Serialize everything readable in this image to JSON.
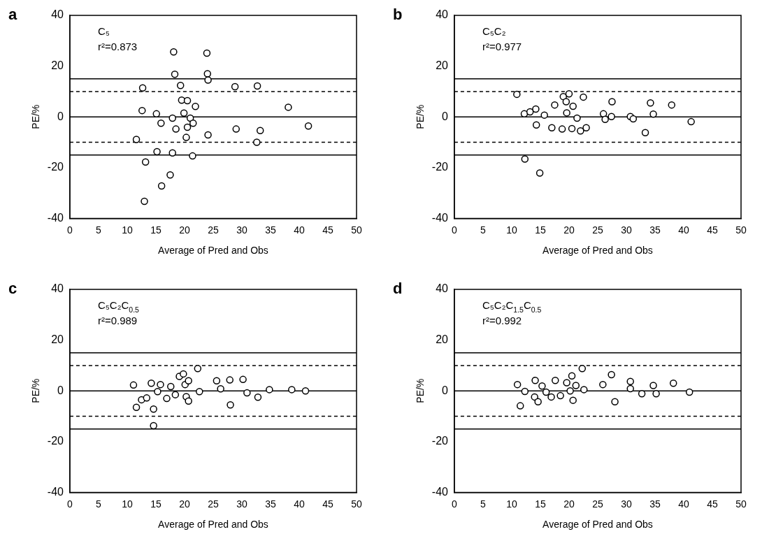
{
  "chart_data": [
    {
      "type": "scatter",
      "title": "a",
      "xlabel": "Average of Pred and Obs",
      "ylabel": "PE/%",
      "annotations": [
        "C₅",
        "r²=0.873"
      ],
      "x": [
        18.1,
        23.9,
        18.3,
        24.0,
        24.1,
        12.7,
        19.3,
        28.8,
        32.7,
        38.1,
        41.6,
        12.6,
        15.1,
        15.9,
        17.9,
        19.5,
        20.5,
        21.9,
        19.9,
        21.0,
        21.5,
        20.5,
        18.5,
        20.3,
        24.1,
        29.0,
        33.2,
        32.6,
        11.6,
        15.2,
        17.9,
        21.4,
        13.2,
        17.5,
        16.0,
        13.0
      ],
      "values": [
        25.6,
        25.1,
        16.8,
        17.0,
        14.5,
        11.4,
        12.4,
        11.9,
        12.2,
        3.8,
        -3.6,
        2.5,
        1.2,
        -2.5,
        -0.5,
        6.6,
        6.4,
        4.1,
        1.5,
        -0.5,
        -2.5,
        -4.1,
        -4.8,
        -8.1,
        -7.1,
        -4.8,
        -5.4,
        -10.0,
        -8.9,
        -13.7,
        -14.2,
        -15.4,
        -17.8,
        -22.9,
        -27.2,
        -33.3
      ],
      "color": "#ffffff",
      "marker": "circle",
      "grid": false,
      "xlim": [
        0,
        50
      ],
      "xticks": [
        0,
        5,
        10,
        15,
        20,
        25,
        30,
        35,
        40,
        45,
        50
      ],
      "ylim": [
        -40,
        40
      ],
      "yticks": [
        -40,
        -20,
        0,
        20,
        40
      ],
      "ref_lines": [
        {
          "axis": "y",
          "value": 15,
          "line_style": "solid"
        },
        {
          "axis": "y",
          "value": 10,
          "line_style": "dashed"
        },
        {
          "axis": "y",
          "value": 0,
          "line_style": "solid"
        },
        {
          "axis": "y",
          "value": -10,
          "line_style": "dashed"
        },
        {
          "axis": "y",
          "value": -15,
          "line_style": "solid"
        }
      ]
    },
    {
      "type": "scatter",
      "title": "b",
      "xlabel": "Average of Pred and Obs",
      "ylabel": "PE/%",
      "annotations": [
        "C₅C₂",
        "r²=0.977"
      ],
      "x": [
        10.9,
        12.2,
        12.3,
        14.9,
        14.2,
        13.2,
        15.7,
        14.3,
        17.5,
        17.0,
        18.8,
        19.0,
        20.0,
        19.5,
        19.6,
        20.7,
        21.4,
        20.5,
        22.0,
        23.0,
        22.5,
        26.0,
        26.3,
        27.4,
        27.5,
        30.7,
        31.2,
        33.3,
        34.2,
        34.7,
        37.9,
        41.3
      ],
      "values": [
        8.9,
        1.2,
        -16.6,
        -22.1,
        3.1,
        2.0,
        0.7,
        -3.2,
        4.7,
        -4.3,
        -4.8,
        8.0,
        9.1,
        6.0,
        1.6,
        4.2,
        -0.5,
        -4.6,
        -5.5,
        -4.3,
        7.8,
        1.2,
        -1.0,
        0.1,
        6.0,
        0.1,
        -0.8,
        -6.2,
        5.5,
        1.1,
        4.7,
        -1.9
      ],
      "color": "#ffffff",
      "marker": "circle",
      "grid": false,
      "xlim": [
        0,
        50
      ],
      "xticks": [
        0,
        5,
        10,
        15,
        20,
        25,
        30,
        35,
        40,
        45,
        50
      ],
      "ylim": [
        -40,
        40
      ],
      "yticks": [
        -40,
        -20,
        0,
        20,
        40
      ],
      "ref_lines": [
        {
          "axis": "y",
          "value": 15,
          "line_style": "solid"
        },
        {
          "axis": "y",
          "value": 10,
          "line_style": "dashed"
        },
        {
          "axis": "y",
          "value": 0,
          "line_style": "solid"
        },
        {
          "axis": "y",
          "value": -10,
          "line_style": "dashed"
        },
        {
          "axis": "y",
          "value": -15,
          "line_style": "solid"
        }
      ]
    },
    {
      "type": "scatter",
      "title": "c",
      "xlabel": "Average of Pred and Obs",
      "ylabel": "PE/%",
      "annotations": [
        "C₅C₂C$_{0.5}$",
        "r²=0.989"
      ],
      "x": [
        11.1,
        11.6,
        12.5,
        13.4,
        14.2,
        14.6,
        14.6,
        15.3,
        15.8,
        16.9,
        17.6,
        18.4,
        19.1,
        19.8,
        20.1,
        20.7,
        20.3,
        20.7,
        22.3,
        22.6,
        25.6,
        26.3,
        27.9,
        28.0,
        30.2,
        30.9,
        32.8,
        34.8,
        38.7,
        41.1
      ],
      "values": [
        2.3,
        -6.5,
        -3.5,
        -2.8,
        3.0,
        -7.2,
        -13.7,
        -0.3,
        2.5,
        -3.0,
        1.7,
        -1.5,
        5.7,
        6.7,
        2.5,
        4.0,
        -2.3,
        -4.0,
        8.8,
        -0.3,
        4.0,
        0.8,
        4.3,
        -5.5,
        4.5,
        -0.8,
        -2.5,
        0.5,
        0.5,
        0.0
      ],
      "color": "#ffffff",
      "marker": "circle",
      "grid": false,
      "xlim": [
        0,
        50
      ],
      "xticks": [
        0,
        5,
        10,
        15,
        20,
        25,
        30,
        35,
        40,
        45,
        50
      ],
      "ylim": [
        -40,
        40
      ],
      "yticks": [
        -40,
        -20,
        0,
        20,
        40
      ],
      "ref_lines": [
        {
          "axis": "y",
          "value": 15,
          "line_style": "solid"
        },
        {
          "axis": "y",
          "value": 10,
          "line_style": "dashed"
        },
        {
          "axis": "y",
          "value": 0,
          "line_style": "solid"
        },
        {
          "axis": "y",
          "value": -10,
          "line_style": "dashed"
        },
        {
          "axis": "y",
          "value": -15,
          "line_style": "solid"
        }
      ]
    },
    {
      "type": "scatter",
      "title": "d",
      "xlabel": "Average of Pred and Obs",
      "ylabel": "PE/%",
      "annotations": [
        "C₅C₂C$_{1.5}$C$_{0.5}$",
        "r²=0.992"
      ],
      "x": [
        11.0,
        11.5,
        12.3,
        14.0,
        14.1,
        14.6,
        15.3,
        16.0,
        16.9,
        17.6,
        18.5,
        19.6,
        20.5,
        20.2,
        21.2,
        20.7,
        22.3,
        22.6,
        25.9,
        27.4,
        28.0,
        30.7,
        30.7,
        32.7,
        34.7,
        35.2,
        38.2,
        41.0
      ],
      "values": [
        2.5,
        -5.9,
        -0.2,
        -2.4,
        4.1,
        -4.3,
        1.9,
        -0.5,
        -2.4,
        4.1,
        -1.9,
        3.2,
        5.9,
        0.0,
        2.1,
        -3.7,
        8.8,
        0.5,
        2.5,
        6.4,
        -4.3,
        3.7,
        0.9,
        -1.1,
        2.1,
        -1.1,
        3.0,
        -0.5
      ],
      "color": "#ffffff",
      "marker": "circle",
      "grid": false,
      "xlim": [
        0,
        50
      ],
      "xticks": [
        0,
        5,
        10,
        15,
        20,
        25,
        30,
        35,
        40,
        45,
        50
      ],
      "ylim": [
        -40,
        40
      ],
      "yticks": [
        -40,
        -20,
        0,
        20,
        40
      ],
      "ref_lines": [
        {
          "axis": "y",
          "value": 15,
          "line_style": "solid"
        },
        {
          "axis": "y",
          "value": 10,
          "line_style": "dashed"
        },
        {
          "axis": "y",
          "value": 0,
          "line_style": "solid"
        },
        {
          "axis": "y",
          "value": -10,
          "line_style": "dashed"
        },
        {
          "axis": "y",
          "value": -15,
          "line_style": "solid"
        }
      ]
    }
  ]
}
